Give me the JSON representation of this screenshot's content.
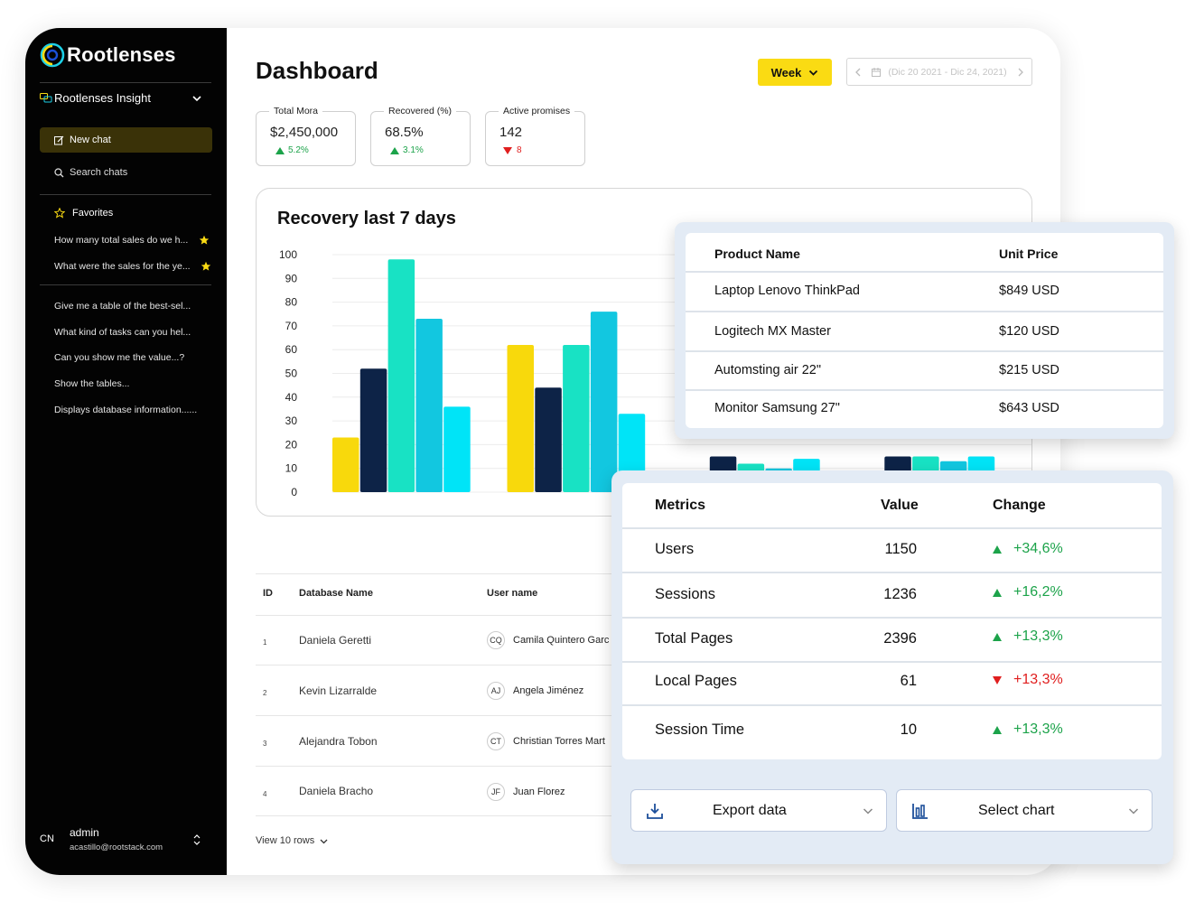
{
  "brand": {
    "name": "Rootlenses"
  },
  "sidebar": {
    "workspace": "Rootlenses Insight",
    "new_chat": "New chat",
    "search_chats": "Search chats",
    "favorites_label": "Favorites",
    "favorites": [
      "How many total sales do we h...",
      "What were the sales for the ye..."
    ],
    "chats": [
      "Give me a table of the best-sel...",
      "What kind of tasks can you hel...",
      "Can you show me the value...?",
      "Show the tables...",
      "Displays database information......"
    ],
    "user": {
      "initials": "CN",
      "name": "admin",
      "email": "acastillo@rootstack.com"
    }
  },
  "header": {
    "title": "Dashboard",
    "period": "Week",
    "date_range": "(Dic 20 2021 - Dic 24, 2021)"
  },
  "kpis": [
    {
      "label": "Total Mora",
      "value": "$2,450,000",
      "delta": "5.2%",
      "direction": "up"
    },
    {
      "label": "Recovered (%)",
      "value": "68.5%",
      "delta": "3.1%",
      "direction": "up"
    },
    {
      "label": "Active promises",
      "value": "142",
      "delta": "8",
      "direction": "down"
    }
  ],
  "colors": {
    "accent_yellow": "#fadb13",
    "up": "#1ca34a",
    "down": "#e01e1e",
    "bar_yellow": "#f8d90c",
    "bar_navy": "#0d2347",
    "bar_mint": "#18e2c4",
    "bar_blue": "#12c7e0",
    "bar_cyan": "#00e4f7"
  },
  "chart_data": {
    "type": "bar",
    "title": "Recovery last 7 days",
    "ylim": [
      0,
      100
    ],
    "yticks": [
      100,
      90,
      80,
      70,
      60,
      50,
      40,
      30,
      20,
      10,
      0
    ],
    "series_colors": [
      "#f8d90c",
      "#0d2347",
      "#18e2c4",
      "#12c7e0",
      "#00e4f7"
    ],
    "groups": [
      {
        "values": [
          23,
          52,
          98,
          73,
          36
        ]
      },
      {
        "values": [
          62,
          44,
          62,
          76,
          33
        ]
      },
      {
        "values": [
          null,
          15,
          12,
          10,
          14
        ]
      },
      {
        "values": [
          null,
          15,
          15,
          13,
          15
        ]
      }
    ]
  },
  "table": {
    "headers": [
      "ID",
      "Database Name",
      "User name"
    ],
    "rows": [
      {
        "id": "1",
        "db": "Daniela Geretti",
        "initials": "CQ",
        "user": "Camila Quintero Garc"
      },
      {
        "id": "2",
        "db": "Kevin Lizarralde",
        "initials": "AJ",
        "user": "Angela Jiménez"
      },
      {
        "id": "3",
        "db": "Alejandra Tobon",
        "initials": "CT",
        "user": "Christian Torres Mart"
      },
      {
        "id": "4",
        "db": "Daniela Bracho",
        "initials": "JF",
        "user": "Juan Florez"
      }
    ],
    "view_rows": "View 10 rows"
  },
  "products": {
    "headers": [
      "Product Name",
      "Unit Price"
    ],
    "rows": [
      {
        "name": "Laptop Lenovo ThinkPad",
        "price": "$849 USD"
      },
      {
        "name": "Logitech MX Master",
        "price": "$120 USD"
      },
      {
        "name": "Automsting air 22\"",
        "price": "$215 USD"
      },
      {
        "name": "Monitor Samsung 27\"",
        "price": "$643 USD"
      }
    ]
  },
  "metrics": {
    "headers": [
      "Metrics",
      "Value",
      "Change"
    ],
    "rows": [
      {
        "name": "Users",
        "value": "1150",
        "change": "+34,6%",
        "direction": "up"
      },
      {
        "name": "Sessions",
        "value": "1236",
        "change": "+16,2%",
        "direction": "up"
      },
      {
        "name": "Total Pages",
        "value": "2396",
        "change": "+13,3%",
        "direction": "up"
      },
      {
        "name": "Local Pages",
        "value": "61",
        "change": "+13,3%",
        "direction": "down"
      },
      {
        "name": "Session Time",
        "value": "10",
        "change": "+13,3%",
        "direction": "up"
      }
    ],
    "export_label": "Export data",
    "chart_label": "Select chart"
  }
}
